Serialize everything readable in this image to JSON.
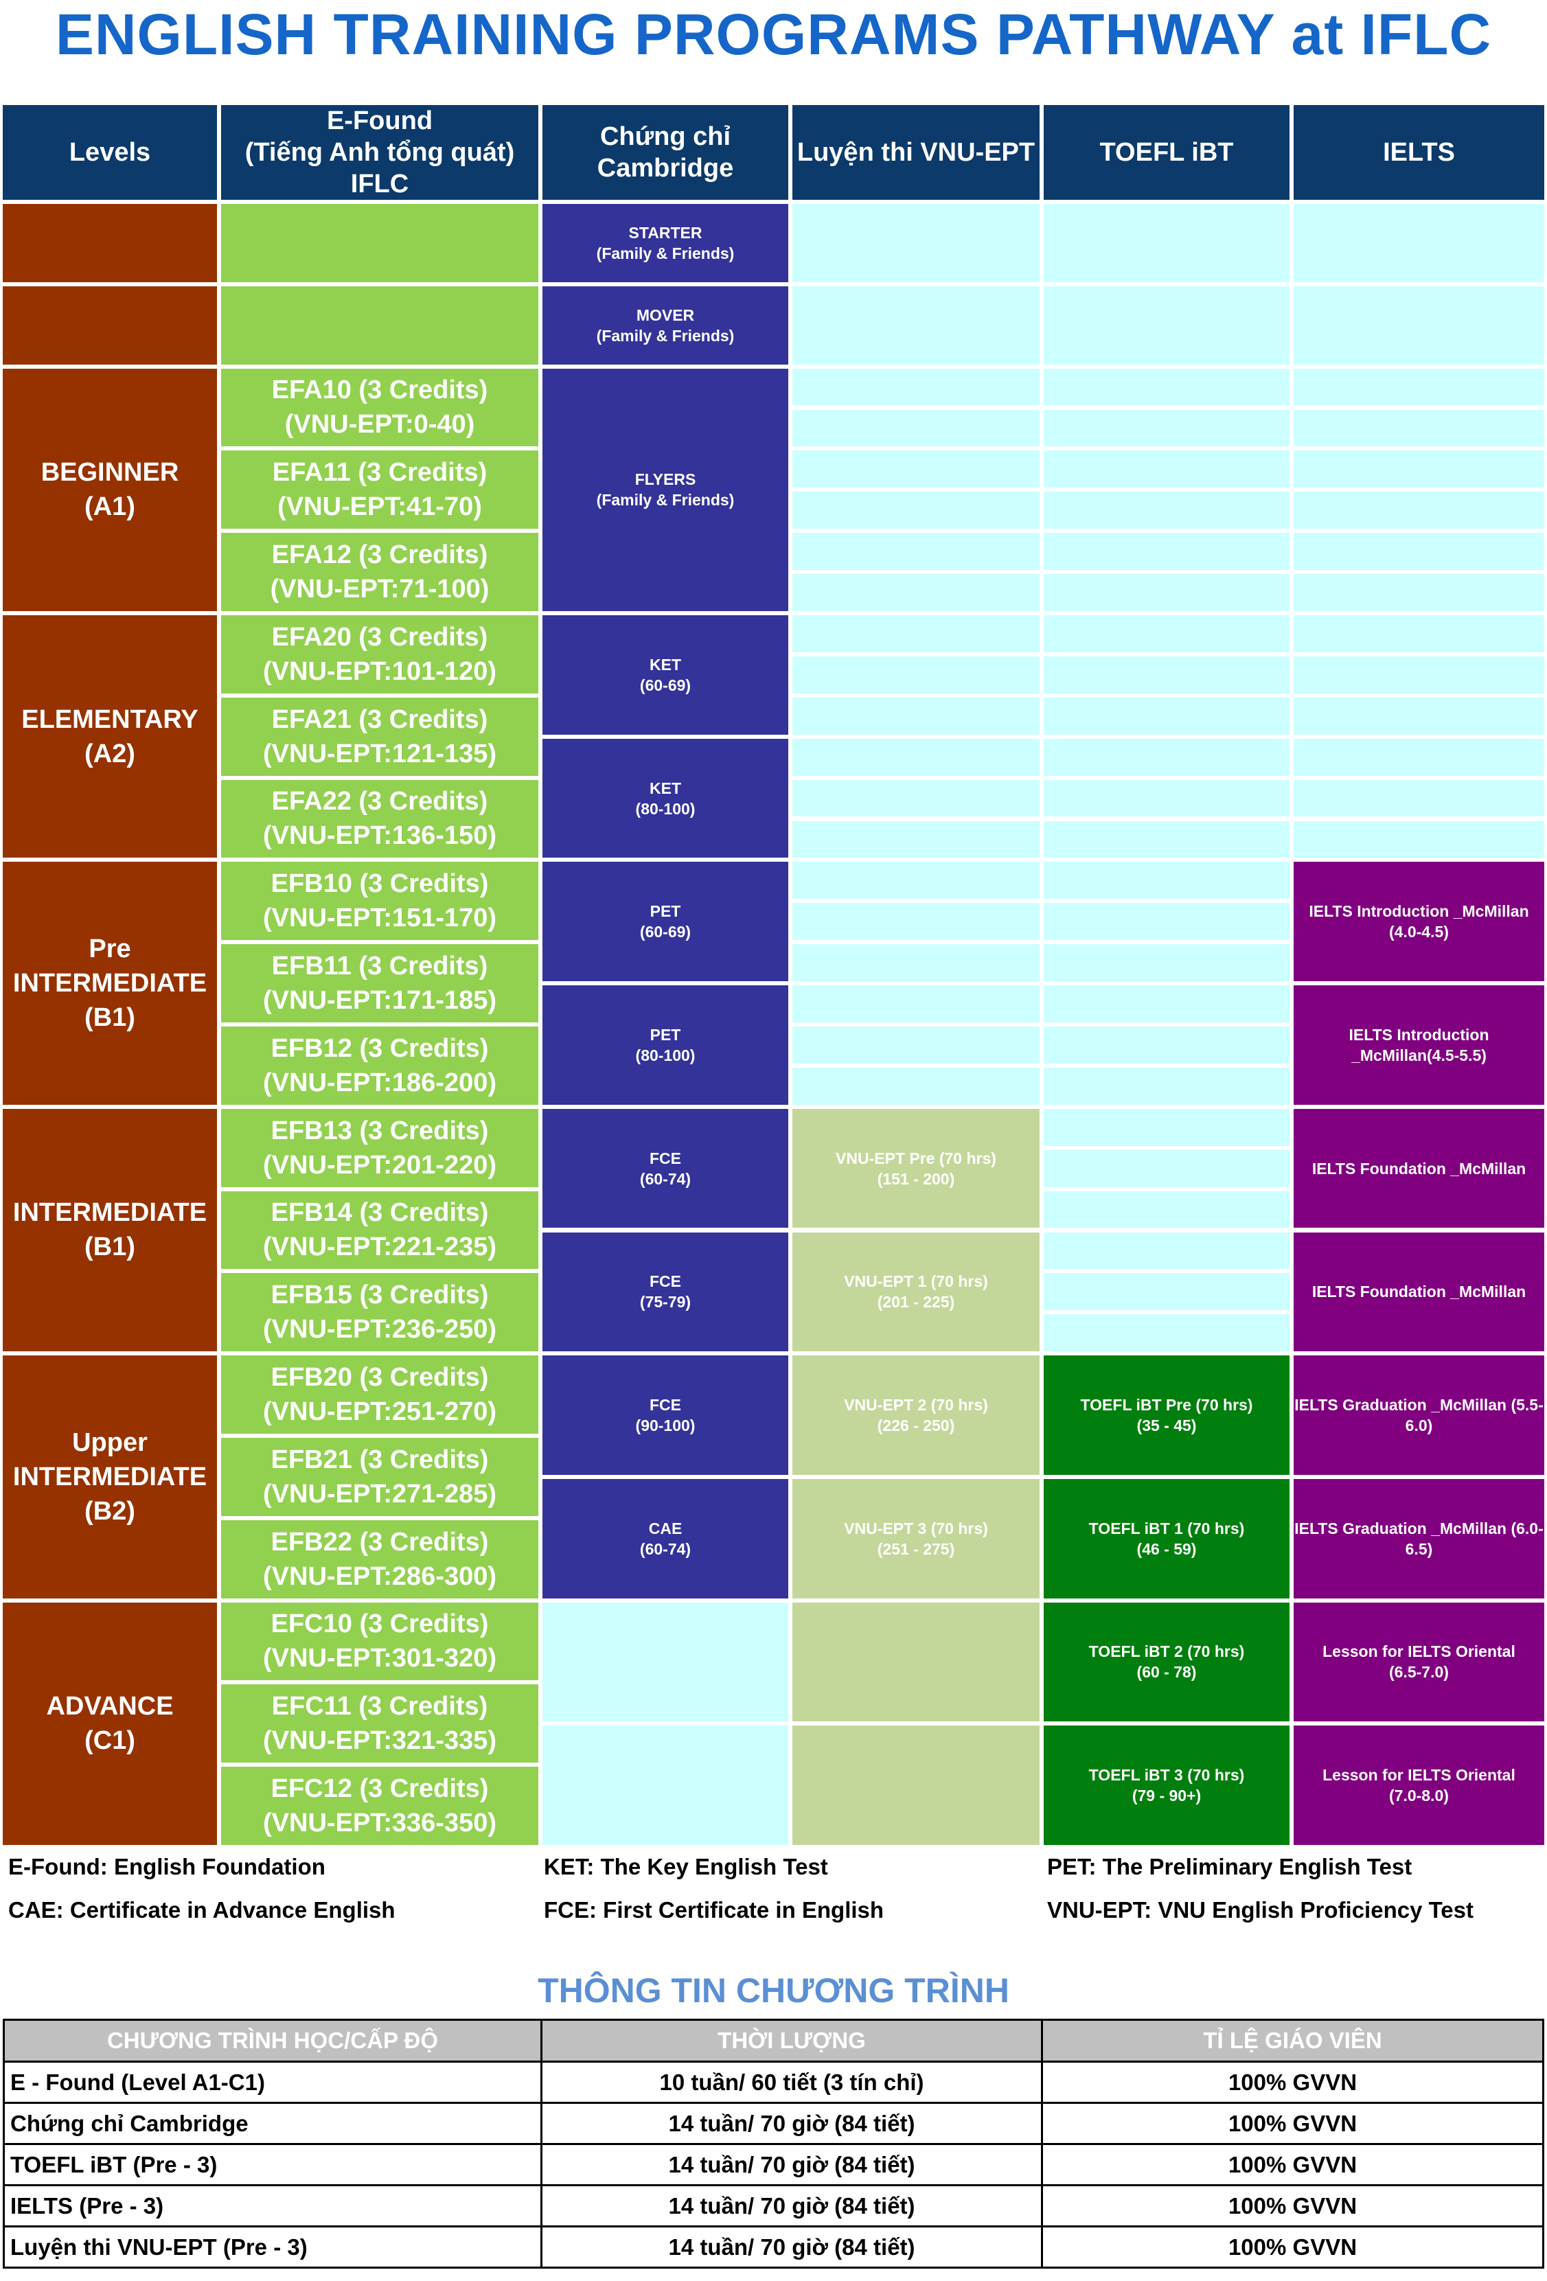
{
  "title": "ENGLISH TRAINING PROGRAMS PATHWAY at IFLC",
  "headers": [
    "Levels",
    "E-Found\n(Tiếng Anh tổng quát)\nIFLC",
    "Chứng chỉ\nCambridge",
    "Luyện thi VNU-EPT",
    "TOEFL iBT",
    "IELTS"
  ],
  "levels": [
    {
      "label": "",
      "rows": [
        0,
        1
      ]
    },
    {
      "label": "",
      "rows": [
        1,
        2
      ]
    },
    {
      "label": "BEGINNER\n(A1)",
      "rows": [
        2,
        5
      ]
    },
    {
      "label": "ELEMENTARY\n(A2)",
      "rows": [
        5,
        8
      ]
    },
    {
      "label": "Pre\nINTERMEDIATE\n(B1)",
      "rows": [
        8,
        11
      ]
    },
    {
      "label": "INTERMEDIATE\n(B1)",
      "rows": [
        11,
        14
      ]
    },
    {
      "label": "Upper\nINTERMEDIATE\n(B2)",
      "rows": [
        14,
        17
      ]
    },
    {
      "label": "ADVANCE\n(C1)",
      "rows": [
        17,
        20
      ]
    }
  ],
  "efound": [
    "",
    "",
    "EFA10 (3 Credits)\n(VNU-EPT:0-40)",
    "EFA11 (3 Credits)\n(VNU-EPT:41-70)",
    "EFA12 (3 Credits)\n(VNU-EPT:71-100)",
    "EFA20 (3 Credits)\n(VNU-EPT:101-120)",
    "EFA21 (3 Credits)\n(VNU-EPT:121-135)",
    "EFA22 (3 Credits)\n(VNU-EPT:136-150)",
    "EFB10 (3 Credits)\n(VNU-EPT:151-170)",
    "EFB11 (3 Credits)\n(VNU-EPT:171-185)",
    "EFB12 (3 Credits)\n(VNU-EPT:186-200)",
    "EFB13 (3 Credits)\n(VNU-EPT:201-220)",
    "EFB14 (3 Credits)\n(VNU-EPT:221-235)",
    "EFB15 (3 Credits)\n(VNU-EPT:236-250)",
    "EFB20 (3 Credits)\n(VNU-EPT:251-270)",
    "EFB21 (3 Credits)\n(VNU-EPT:271-285)",
    "EFB22 (3 Credits)\n(VNU-EPT:286-300)",
    "EFC10 (3 Credits)\n(VNU-EPT:301-320)",
    "EFC11 (3 Credits)\n(VNU-EPT:321-335)",
    "EFC12 (3 Credits)\n(VNU-EPT:336-350)"
  ],
  "cambridge": [
    {
      "text": "STARTER\n(Family & Friends)",
      "rows": [
        0,
        1
      ],
      "kind": "cam"
    },
    {
      "text": "MOVER\n(Family & Friends)",
      "rows": [
        1,
        2
      ],
      "kind": "cam"
    },
    {
      "text": "FLYERS\n(Family & Friends)",
      "rows": [
        2,
        5
      ],
      "kind": "cam"
    },
    {
      "text": "KET\n(60-69)",
      "rows": [
        5,
        6.5
      ],
      "kind": "cam"
    },
    {
      "text": "KET\n(80-100)",
      "rows": [
        6.5,
        8
      ],
      "kind": "cam"
    },
    {
      "text": "PET\n(60-69)",
      "rows": [
        8,
        9.5
      ],
      "kind": "cam"
    },
    {
      "text": "PET\n(80-100)",
      "rows": [
        9.5,
        11
      ],
      "kind": "cam"
    },
    {
      "text": "FCE\n(60-74)",
      "rows": [
        11,
        12.5
      ],
      "kind": "cam"
    },
    {
      "text": "FCE\n(75-79)",
      "rows": [
        12.5,
        14
      ],
      "kind": "cam"
    },
    {
      "text": "FCE\n(90-100)",
      "rows": [
        14,
        15.5
      ],
      "kind": "cam"
    },
    {
      "text": "CAE\n(60-74)",
      "rows": [
        15.5,
        17
      ],
      "kind": "cam"
    },
    {
      "text": "",
      "rows": [
        17,
        18.5
      ],
      "kind": "cyan"
    },
    {
      "text": "",
      "rows": [
        18.5,
        20
      ],
      "kind": "cyan"
    }
  ],
  "vnu": [
    {
      "text": "",
      "rows": [
        0,
        1
      ],
      "kind": "cyan"
    },
    {
      "text": "",
      "rows": [
        1,
        2
      ],
      "kind": "cyan"
    },
    {
      "text": "",
      "rows": [
        2,
        2.5
      ],
      "kind": "cyan"
    },
    {
      "text": "",
      "rows": [
        2.5,
        3
      ],
      "kind": "cyan"
    },
    {
      "text": "",
      "rows": [
        3,
        3.5
      ],
      "kind": "cyan"
    },
    {
      "text": "",
      "rows": [
        3.5,
        4
      ],
      "kind": "cyan"
    },
    {
      "text": "",
      "rows": [
        4,
        4.5
      ],
      "kind": "cyan"
    },
    {
      "text": "",
      "rows": [
        4.5,
        5
      ],
      "kind": "cyan"
    },
    {
      "text": "",
      "rows": [
        5,
        5.5
      ],
      "kind": "cyan"
    },
    {
      "text": "",
      "rows": [
        5.5,
        6
      ],
      "kind": "cyan"
    },
    {
      "text": "",
      "rows": [
        6,
        6.5
      ],
      "kind": "cyan"
    },
    {
      "text": "",
      "rows": [
        6.5,
        7
      ],
      "kind": "cyan"
    },
    {
      "text": "",
      "rows": [
        7,
        7.5
      ],
      "kind": "cyan"
    },
    {
      "text": "",
      "rows": [
        7.5,
        8
      ],
      "kind": "cyan"
    },
    {
      "text": "",
      "rows": [
        8,
        8.5
      ],
      "kind": "cyan"
    },
    {
      "text": "",
      "rows": [
        8.5,
        9
      ],
      "kind": "cyan"
    },
    {
      "text": "",
      "rows": [
        9,
        9.5
      ],
      "kind": "cyan"
    },
    {
      "text": "",
      "rows": [
        9.5,
        10
      ],
      "kind": "cyan"
    },
    {
      "text": "",
      "rows": [
        10,
        10.5
      ],
      "kind": "cyan"
    },
    {
      "text": "",
      "rows": [
        10.5,
        11
      ],
      "kind": "cyan"
    },
    {
      "text": "VNU-EPT Pre (70 hrs)\n(151 - 200)",
      "rows": [
        11,
        12.5
      ],
      "kind": "vnu"
    },
    {
      "text": "VNU-EPT 1 (70 hrs)\n(201 - 225)",
      "rows": [
        12.5,
        14
      ],
      "kind": "vnu"
    },
    {
      "text": "VNU-EPT 2 (70 hrs)\n(226 - 250)",
      "rows": [
        14,
        15.5
      ],
      "kind": "vnu"
    },
    {
      "text": "VNU-EPT 3 (70 hrs)\n(251 - 275)",
      "rows": [
        15.5,
        17
      ],
      "kind": "vnu"
    },
    {
      "text": "",
      "rows": [
        17,
        18.5
      ],
      "kind": "vnu"
    },
    {
      "text": "",
      "rows": [
        18.5,
        20
      ],
      "kind": "vnu"
    }
  ],
  "toefl": [
    {
      "text": "",
      "rows": [
        0,
        1
      ],
      "kind": "cyan"
    },
    {
      "text": "",
      "rows": [
        1,
        2
      ],
      "kind": "cyan"
    },
    {
      "text": "",
      "rows": [
        2,
        2.5
      ],
      "kind": "cyan"
    },
    {
      "text": "",
      "rows": [
        2.5,
        3
      ],
      "kind": "cyan"
    },
    {
      "text": "",
      "rows": [
        3,
        3.5
      ],
      "kind": "cyan"
    },
    {
      "text": "",
      "rows": [
        3.5,
        4
      ],
      "kind": "cyan"
    },
    {
      "text": "",
      "rows": [
        4,
        4.5
      ],
      "kind": "cyan"
    },
    {
      "text": "",
      "rows": [
        4.5,
        5
      ],
      "kind": "cyan"
    },
    {
      "text": "",
      "rows": [
        5,
        5.5
      ],
      "kind": "cyan"
    },
    {
      "text": "",
      "rows": [
        5.5,
        6
      ],
      "kind": "cyan"
    },
    {
      "text": "",
      "rows": [
        6,
        6.5
      ],
      "kind": "cyan"
    },
    {
      "text": "",
      "rows": [
        6.5,
        7
      ],
      "kind": "cyan"
    },
    {
      "text": "",
      "rows": [
        7,
        7.5
      ],
      "kind": "cyan"
    },
    {
      "text": "",
      "rows": [
        7.5,
        8
      ],
      "kind": "cyan"
    },
    {
      "text": "",
      "rows": [
        8,
        8.5
      ],
      "kind": "cyan"
    },
    {
      "text": "",
      "rows": [
        8.5,
        9
      ],
      "kind": "cyan"
    },
    {
      "text": "",
      "rows": [
        9,
        9.5
      ],
      "kind": "cyan"
    },
    {
      "text": "",
      "rows": [
        9.5,
        10
      ],
      "kind": "cyan"
    },
    {
      "text": "",
      "rows": [
        10,
        10.5
      ],
      "kind": "cyan"
    },
    {
      "text": "",
      "rows": [
        10.5,
        11
      ],
      "kind": "cyan"
    },
    {
      "text": "",
      "rows": [
        11,
        11.5
      ],
      "kind": "cyan"
    },
    {
      "text": "",
      "rows": [
        11.5,
        12
      ],
      "kind": "cyan"
    },
    {
      "text": "",
      "rows": [
        12,
        12.5
      ],
      "kind": "cyan"
    },
    {
      "text": "",
      "rows": [
        12.5,
        13
      ],
      "kind": "cyan"
    },
    {
      "text": "",
      "rows": [
        13,
        13.5
      ],
      "kind": "cyan"
    },
    {
      "text": "",
      "rows": [
        13.5,
        14
      ],
      "kind": "cyan"
    },
    {
      "text": "TOEFL iBT Pre (70 hrs)\n(35 - 45)",
      "rows": [
        14,
        15.5
      ],
      "kind": "toe"
    },
    {
      "text": "TOEFL iBT 1 (70 hrs)\n(46 - 59)",
      "rows": [
        15.5,
        17
      ],
      "kind": "toe"
    },
    {
      "text": "TOEFL iBT 2 (70 hrs)\n(60 - 78)",
      "rows": [
        17,
        18.5
      ],
      "kind": "toe"
    },
    {
      "text": "TOEFL iBT 3 (70 hrs)\n(79 - 90+)",
      "rows": [
        18.5,
        20
      ],
      "kind": "toe"
    }
  ],
  "ielts": [
    {
      "text": "",
      "rows": [
        0,
        1
      ],
      "kind": "cyan"
    },
    {
      "text": "",
      "rows": [
        1,
        2
      ],
      "kind": "cyan"
    },
    {
      "text": "",
      "rows": [
        2,
        2.5
      ],
      "kind": "cyan"
    },
    {
      "text": "",
      "rows": [
        2.5,
        3
      ],
      "kind": "cyan"
    },
    {
      "text": "",
      "rows": [
        3,
        3.5
      ],
      "kind": "cyan"
    },
    {
      "text": "",
      "rows": [
        3.5,
        4
      ],
      "kind": "cyan"
    },
    {
      "text": "",
      "rows": [
        4,
        4.5
      ],
      "kind": "cyan"
    },
    {
      "text": "",
      "rows": [
        4.5,
        5
      ],
      "kind": "cyan"
    },
    {
      "text": "",
      "rows": [
        5,
        5.5
      ],
      "kind": "cyan"
    },
    {
      "text": "",
      "rows": [
        5.5,
        6
      ],
      "kind": "cyan"
    },
    {
      "text": "",
      "rows": [
        6,
        6.5
      ],
      "kind": "cyan"
    },
    {
      "text": "",
      "rows": [
        6.5,
        7
      ],
      "kind": "cyan"
    },
    {
      "text": "",
      "rows": [
        7,
        7.5
      ],
      "kind": "cyan"
    },
    {
      "text": "",
      "rows": [
        7.5,
        8
      ],
      "kind": "cyan"
    },
    {
      "text": "IELTS Introduction _McMillan\n(4.0-4.5)",
      "rows": [
        8,
        9.5
      ],
      "kind": "iel"
    },
    {
      "text": "IELTS Introduction\n_McMillan(4.5-5.5)",
      "rows": [
        9.5,
        11
      ],
      "kind": "iel"
    },
    {
      "text": "IELTS Foundation _McMillan",
      "rows": [
        11,
        12.5
      ],
      "kind": "iel"
    },
    {
      "text": "IELTS Foundation _McMillan",
      "rows": [
        12.5,
        14
      ],
      "kind": "iel"
    },
    {
      "text": "IELTS Graduation _McMillan (5.5-\n6.0)",
      "rows": [
        14,
        15.5
      ],
      "kind": "iel"
    },
    {
      "text": "IELTS Graduation _McMillan (6.0-\n6.5)",
      "rows": [
        15.5,
        17
      ],
      "kind": "iel"
    },
    {
      "text": "Lesson for IELTS            Oriental\n(6.5-7.0)",
      "rows": [
        17,
        18.5
      ],
      "kind": "iel"
    },
    {
      "text": "Lesson for IELTS            Oriental\n(7.0-8.0)",
      "rows": [
        18.5,
        20
      ],
      "kind": "iel"
    }
  ],
  "abbreviations": [
    [
      "E-Found: English Foundation",
      "KET: The Key English Test",
      "PET: The Preliminary English Test"
    ],
    [
      "CAE: Certificate in Advance English",
      "FCE: First Certificate in English",
      "VNU-EPT: VNU English Proficiency Test"
    ]
  ],
  "info": {
    "title": "THÔNG TIN CHƯƠNG TRÌNH",
    "headers": [
      "CHƯƠNG TRÌNH HỌC/CẤP ĐỘ",
      "THỜI LƯỢNG",
      "TỈ LỆ GIÁO VIÊN"
    ],
    "rows": [
      [
        "E - Found (Level A1-C1)",
        "10 tuần/ 60 tiết (3 tín chỉ)",
        "100% GVVN"
      ],
      [
        "Chứng chỉ Cambridge",
        "14 tuần/ 70 giờ (84 tiết)",
        "100% GVVN"
      ],
      [
        "TOEFL iBT (Pre - 3)",
        "14 tuần/ 70 giờ (84 tiết)",
        "100% GVVN"
      ],
      [
        "IELTS (Pre - 3)",
        "14 tuần/ 70 giờ (84 tiết)",
        "100% GVVN"
      ],
      [
        "Luyện thi VNU-EPT (Pre - 3)",
        "14 tuần/ 70 giờ (84 tiết)",
        "100% GVVN"
      ]
    ]
  }
}
